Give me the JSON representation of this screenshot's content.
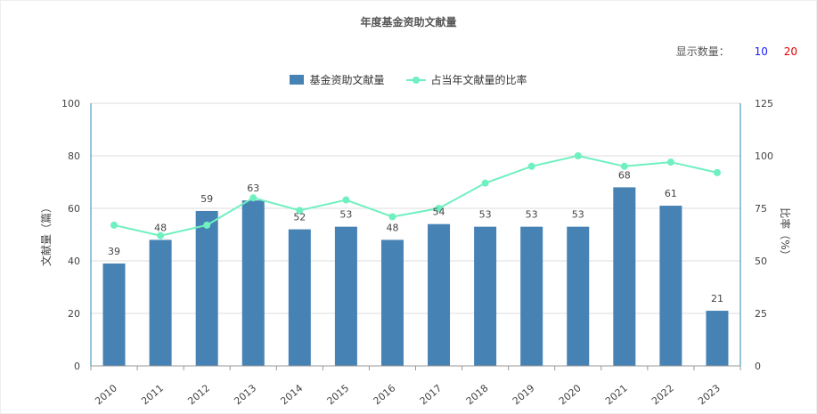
{
  "title": "年度基金资助文献量",
  "display_count": {
    "label": "显示数量：",
    "options": [
      "10",
      "20"
    ],
    "option_colors": [
      "#1a1aff",
      "#e00000"
    ]
  },
  "colors": {
    "bar": "#4682b4",
    "line": "#6ff0c0",
    "grid": "#dddddd",
    "axis": "#2b8ab0"
  },
  "chart_data": {
    "type": "bar",
    "categories": [
      "2010",
      "2011",
      "2012",
      "2013",
      "2014",
      "2015",
      "2016",
      "2017",
      "2018",
      "2019",
      "2020",
      "2021",
      "2022",
      "2023"
    ],
    "series": [
      {
        "name": "基金资助文献量",
        "type": "bar",
        "axis": "left",
        "values": [
          39,
          48,
          59,
          63,
          52,
          53,
          48,
          54,
          53,
          53,
          53,
          68,
          61,
          21
        ]
      },
      {
        "name": "占当年文献量的比率",
        "type": "line",
        "axis": "right",
        "values": [
          67,
          62,
          67,
          80,
          74,
          79,
          71,
          75,
          87,
          95,
          100,
          95,
          97,
          92
        ]
      }
    ],
    "ylabel": "文献量（篇）",
    "y2label": "比率（%）",
    "ylim": [
      0,
      100
    ],
    "y2lim": [
      0,
      125
    ],
    "yticks": [
      "0",
      "20",
      "40",
      "60",
      "80",
      "100"
    ],
    "y2ticks": [
      "0",
      "25",
      "50",
      "75",
      "100",
      "125"
    ],
    "grid": true,
    "legend_position": "top-center"
  }
}
